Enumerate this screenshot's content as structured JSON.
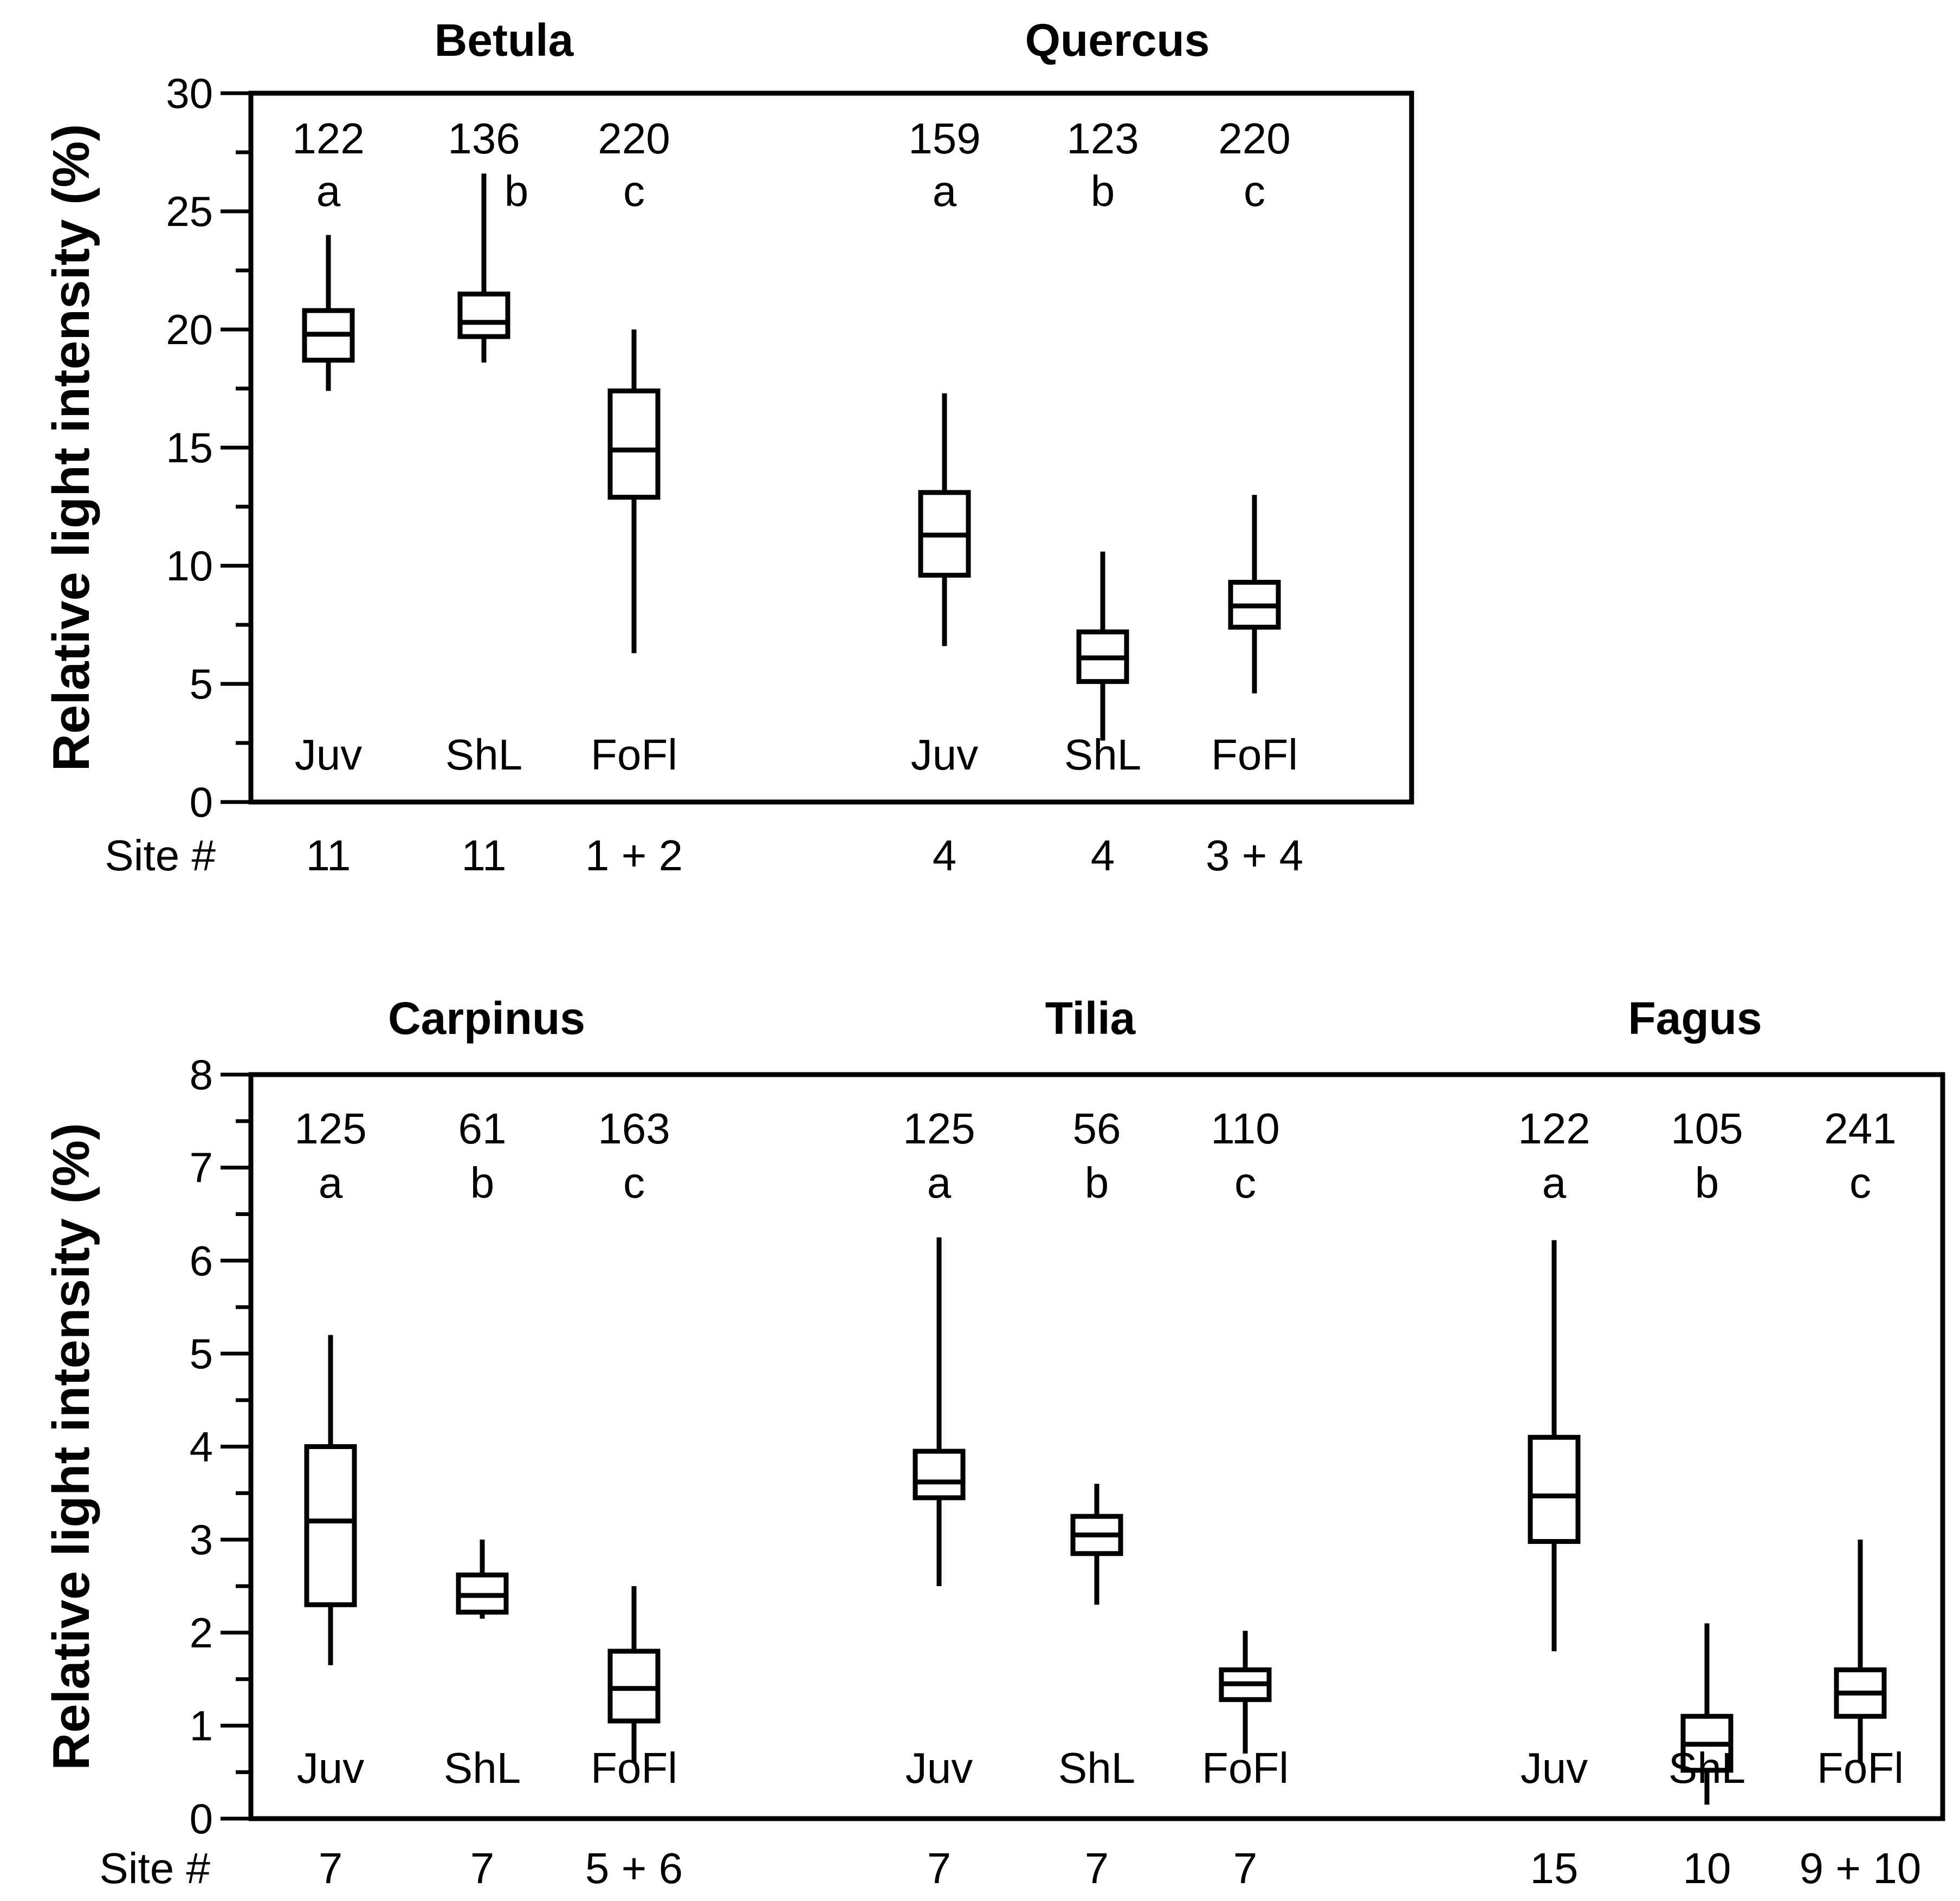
{
  "figure": {
    "site_header": "Site #"
  },
  "chart_data": [
    {
      "type": "box",
      "ylabel": "Relative light intensity (%)",
      "ylim": [
        0,
        30
      ],
      "major_ticks": [
        0,
        5,
        10,
        15,
        20,
        25,
        30
      ],
      "minor_step": 2.5,
      "groups": [
        {
          "title": "Betula",
          "boxes": [
            {
              "category": "Juv",
              "n": "122",
              "letter": "a",
              "site": "11",
              "whisker_low": 17.4,
              "q1": 18.7,
              "median": 19.8,
              "q3": 20.8,
              "whisker_high": 24.0
            },
            {
              "category": "ShL",
              "n": "136",
              "letter": "b",
              "site": "11",
              "whisker_low": 18.6,
              "q1": 19.7,
              "median": 20.3,
              "q3": 21.5,
              "whisker_high": 26.6
            },
            {
              "category": "FoFl",
              "n": "220",
              "letter": "c",
              "site": "1 + 2",
              "whisker_low": 6.3,
              "q1": 12.9,
              "median": 14.9,
              "q3": 17.4,
              "whisker_high": 20.0
            }
          ]
        },
        {
          "title": "Quercus",
          "boxes": [
            {
              "category": "Juv",
              "n": "159",
              "letter": "a",
              "site": "4",
              "whisker_low": 6.6,
              "q1": 9.6,
              "median": 11.3,
              "q3": 13.1,
              "whisker_high": 17.3
            },
            {
              "category": "ShL",
              "n": "123",
              "letter": "b",
              "site": "4",
              "whisker_low": 2.6,
              "q1": 5.1,
              "median": 6.1,
              "q3": 7.2,
              "whisker_high": 10.6
            },
            {
              "category": "FoFl",
              "n": "220",
              "letter": "c",
              "site": "3 + 4",
              "whisker_low": 4.6,
              "q1": 7.4,
              "median": 8.3,
              "q3": 9.3,
              "whisker_high": 13.0
            }
          ]
        }
      ]
    },
    {
      "type": "box",
      "ylabel": "Relative light intensity (%)",
      "ylim": [
        0,
        8
      ],
      "major_ticks": [
        0,
        1,
        2,
        3,
        4,
        5,
        6,
        7,
        8
      ],
      "minor_step": 0.5,
      "groups": [
        {
          "title": "Carpinus",
          "boxes": [
            {
              "category": "Juv",
              "n": "125",
              "letter": "a",
              "site": "7",
              "whisker_low": 1.65,
              "q1": 2.3,
              "median": 3.2,
              "q3": 4.0,
              "whisker_high": 5.2
            },
            {
              "category": "ShL",
              "n": "61",
              "letter": "b",
              "site": "7",
              "whisker_low": 2.15,
              "q1": 2.22,
              "median": 2.4,
              "q3": 2.62,
              "whisker_high": 3.0
            },
            {
              "category": "FoFl",
              "n": "163",
              "letter": "c",
              "site": "5 + 6",
              "whisker_low": 0.6,
              "q1": 1.05,
              "median": 1.4,
              "q3": 1.8,
              "whisker_high": 2.5
            }
          ]
        },
        {
          "title": "Tilia",
          "boxes": [
            {
              "category": "Juv",
              "n": "125",
              "letter": "a",
              "site": "7",
              "whisker_low": 2.5,
              "q1": 3.45,
              "median": 3.62,
              "q3": 3.95,
              "whisker_high": 6.25
            },
            {
              "category": "ShL",
              "n": "56",
              "letter": "b",
              "site": "7",
              "whisker_low": 2.3,
              "q1": 2.85,
              "median": 3.05,
              "q3": 3.25,
              "whisker_high": 3.6
            },
            {
              "category": "FoFl",
              "n": "110",
              "letter": "c",
              "site": "7",
              "whisker_low": 0.7,
              "q1": 1.28,
              "median": 1.45,
              "q3": 1.6,
              "whisker_high": 2.02
            }
          ]
        },
        {
          "title": "Fagus",
          "boxes": [
            {
              "category": "Juv",
              "n": "122",
              "letter": "a",
              "site": "15",
              "whisker_low": 1.8,
              "q1": 2.98,
              "median": 3.47,
              "q3": 4.1,
              "whisker_high": 6.22
            },
            {
              "category": "ShL",
              "n": "105",
              "letter": "b",
              "site": "10",
              "whisker_low": 0.15,
              "q1": 0.52,
              "median": 0.8,
              "q3": 1.1,
              "whisker_high": 2.1
            },
            {
              "category": "FoFl",
              "n": "241",
              "letter": "c",
              "site": "9 + 10",
              "whisker_low": 0.6,
              "q1": 1.1,
              "median": 1.35,
              "q3": 1.6,
              "whisker_high": 3.0
            }
          ]
        }
      ]
    }
  ]
}
